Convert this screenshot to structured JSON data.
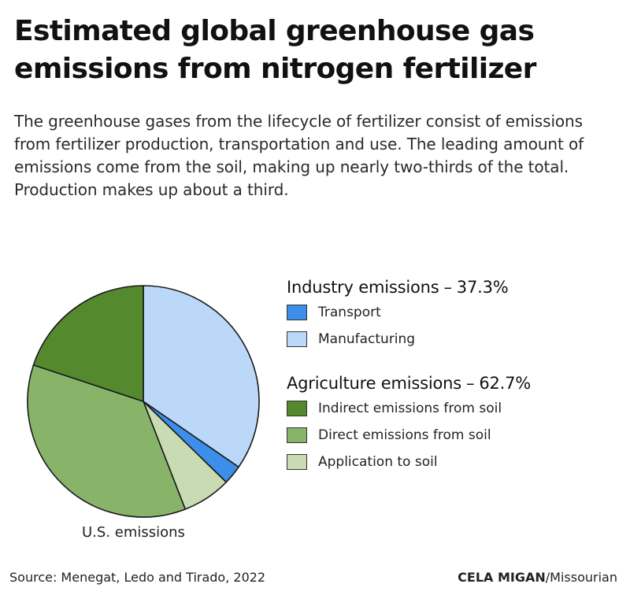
{
  "title": "Estimated global greenhouse gas emissions from nitrogen fertilizer",
  "subtitle": "The greenhouse gases from the lifecycle of fertilizer consist of emissions from fertilizer production, transportation and use. The leading amount of emissions come from the soil, making up nearly two-thirds of the total. Production makes up about a third.",
  "legend": {
    "industry": {
      "label": "Industry emissions",
      "separator": "–",
      "total": "37.3%"
    },
    "agriculture": {
      "label": "Agriculture emissions",
      "separator": "–",
      "total": "62.7%"
    }
  },
  "chart_data": {
    "type": "pie",
    "caption": "U.S. emissions",
    "start_angle_deg": 0,
    "direction": "clockwise",
    "slices": [
      {
        "name": "Manufacturing",
        "group": "Industry emissions",
        "value": 34.6,
        "color": "#bcd8f8"
      },
      {
        "name": "Transport",
        "group": "Industry emissions",
        "value": 2.7,
        "color": "#3d8ee8"
      },
      {
        "name": "Application to soil",
        "group": "Agriculture emissions",
        "value": 6.8,
        "color": "#c8dbb3"
      },
      {
        "name": "Direct emissions from soil",
        "group": "Agriculture emissions",
        "value": 36.0,
        "color": "#88b46a"
      },
      {
        "name": "Indirect emissions from soil",
        "group": "Agriculture emissions",
        "value": 19.9,
        "color": "#55892e"
      }
    ]
  },
  "footer": {
    "source": "Source: Menegat, Ledo and Tirado, 2022",
    "credit_name": "CELA MIGAN",
    "credit_org": "/Missourian"
  }
}
